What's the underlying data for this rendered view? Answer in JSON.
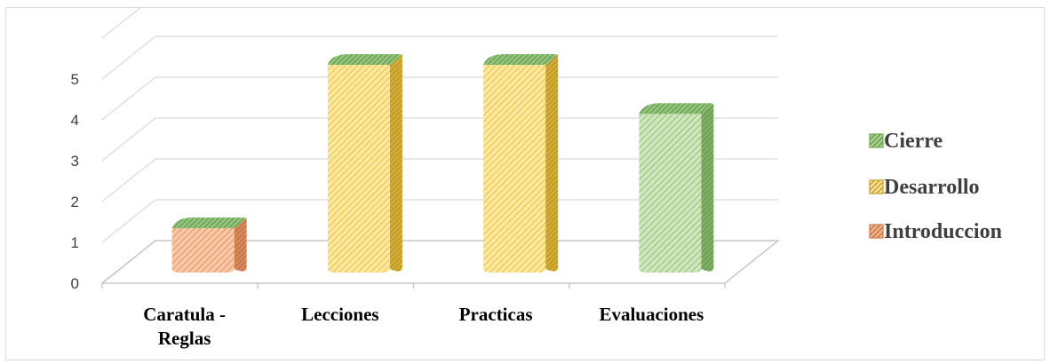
{
  "chart_data": {
    "type": "bar",
    "style": "3d-stacked-column",
    "categories": [
      "Caratula -\nReglas",
      "Lecciones",
      "Practicas",
      "Evaluaciones"
    ],
    "series": [
      {
        "name": "Introduccion",
        "values": [
          1,
          0,
          0,
          0
        ]
      },
      {
        "name": "Desarrollo",
        "values": [
          0,
          5,
          5,
          0
        ]
      },
      {
        "name": "Cierre",
        "values": [
          0,
          0,
          0,
          3.8
        ]
      }
    ],
    "y_ticks": [
      "0",
      "1",
      "2",
      "3",
      "4",
      "5"
    ],
    "ylim": [
      0,
      5
    ],
    "grid": true,
    "legend_position": "right",
    "colors": {
      "Introduccion": "#f4b183",
      "Desarrollo": "#ffd966",
      "Cierre": "#a9d18e",
      "Introduccion_side": "#d07c4f",
      "Desarrollo_side": "#c9a227",
      "Cierre_side": "#6b9e55",
      "Cierre_top": "#70ad47",
      "gridline": "#d9d9d9"
    }
  },
  "legend": [
    {
      "label": "Cierre",
      "color": "#70ad47"
    },
    {
      "label": "Desarrollo",
      "color": "#c9a227"
    },
    {
      "label": "Introduccion",
      "color": "#d07c4f"
    }
  ]
}
